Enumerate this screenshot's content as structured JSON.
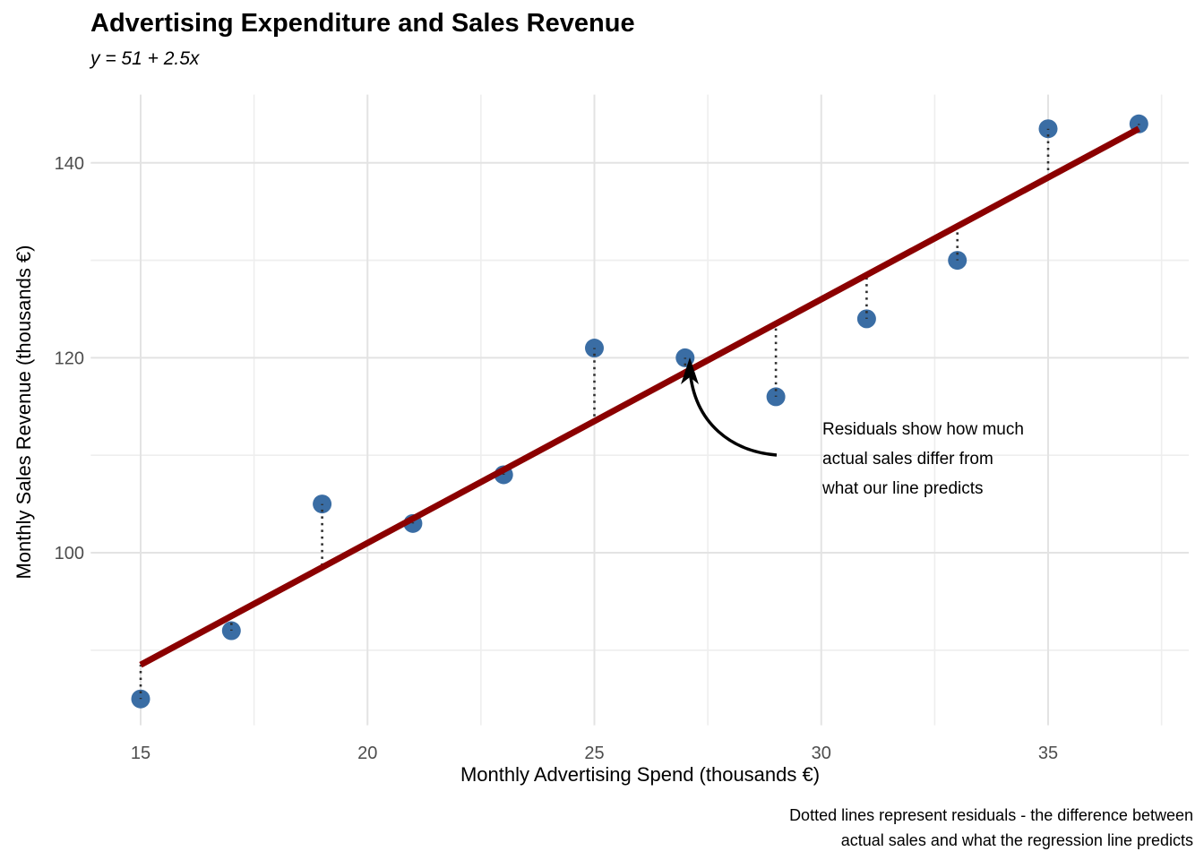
{
  "chart_data": {
    "type": "scatter",
    "title": "Advertising Expenditure and Sales Revenue",
    "subtitle": "y = 51 + 2.5x",
    "xlabel": "Monthly Advertising Spend (thousands €)",
    "ylabel": "Monthly Sales Revenue (thousands €)",
    "points": [
      {
        "x": 15,
        "y": 85
      },
      {
        "x": 17,
        "y": 92
      },
      {
        "x": 19,
        "y": 105
      },
      {
        "x": 21,
        "y": 103
      },
      {
        "x": 23,
        "y": 108
      },
      {
        "x": 25,
        "y": 121
      },
      {
        "x": 27,
        "y": 120
      },
      {
        "x": 29,
        "y": 116
      },
      {
        "x": 31,
        "y": 124
      },
      {
        "x": 33,
        "y": 130
      },
      {
        "x": 35,
        "y": 143.5
      },
      {
        "x": 37,
        "y": 144
      }
    ],
    "regression": {
      "equation": "y = 51 + 2.5x",
      "intercept": 51,
      "slope": 2.5,
      "x_start": 15,
      "x_end": 37
    },
    "residuals_shown": true,
    "x_ticks": [
      15,
      20,
      25,
      30,
      35
    ],
    "y_ticks": [
      100,
      120,
      140
    ],
    "x_minor_gridlines": [
      17.5,
      22.5,
      27.5,
      32.5,
      37.5
    ],
    "y_minor_gridlines": [
      90,
      110,
      130
    ],
    "xlim": [
      13.9,
      38.1
    ],
    "ylim": [
      82.3,
      147.0
    ],
    "grid": true,
    "legend": "none",
    "annotation": {
      "lines": [
        "Residuals show how much",
        "actual sales differ from",
        "what our line predicts"
      ]
    },
    "caption": {
      "lines": [
        "Dotted lines represent residuals - the difference between",
        "actual sales and what the regression line predicts"
      ]
    },
    "colors": {
      "point": "#3A6DA4",
      "regression_line": "#8B0000",
      "residual": "#2e2e2e",
      "grid_major": "#e3e3e3",
      "grid_minor": "#eeeeee",
      "tick_text": "#4d4d4d",
      "annotation_arrow": "#000000"
    }
  }
}
